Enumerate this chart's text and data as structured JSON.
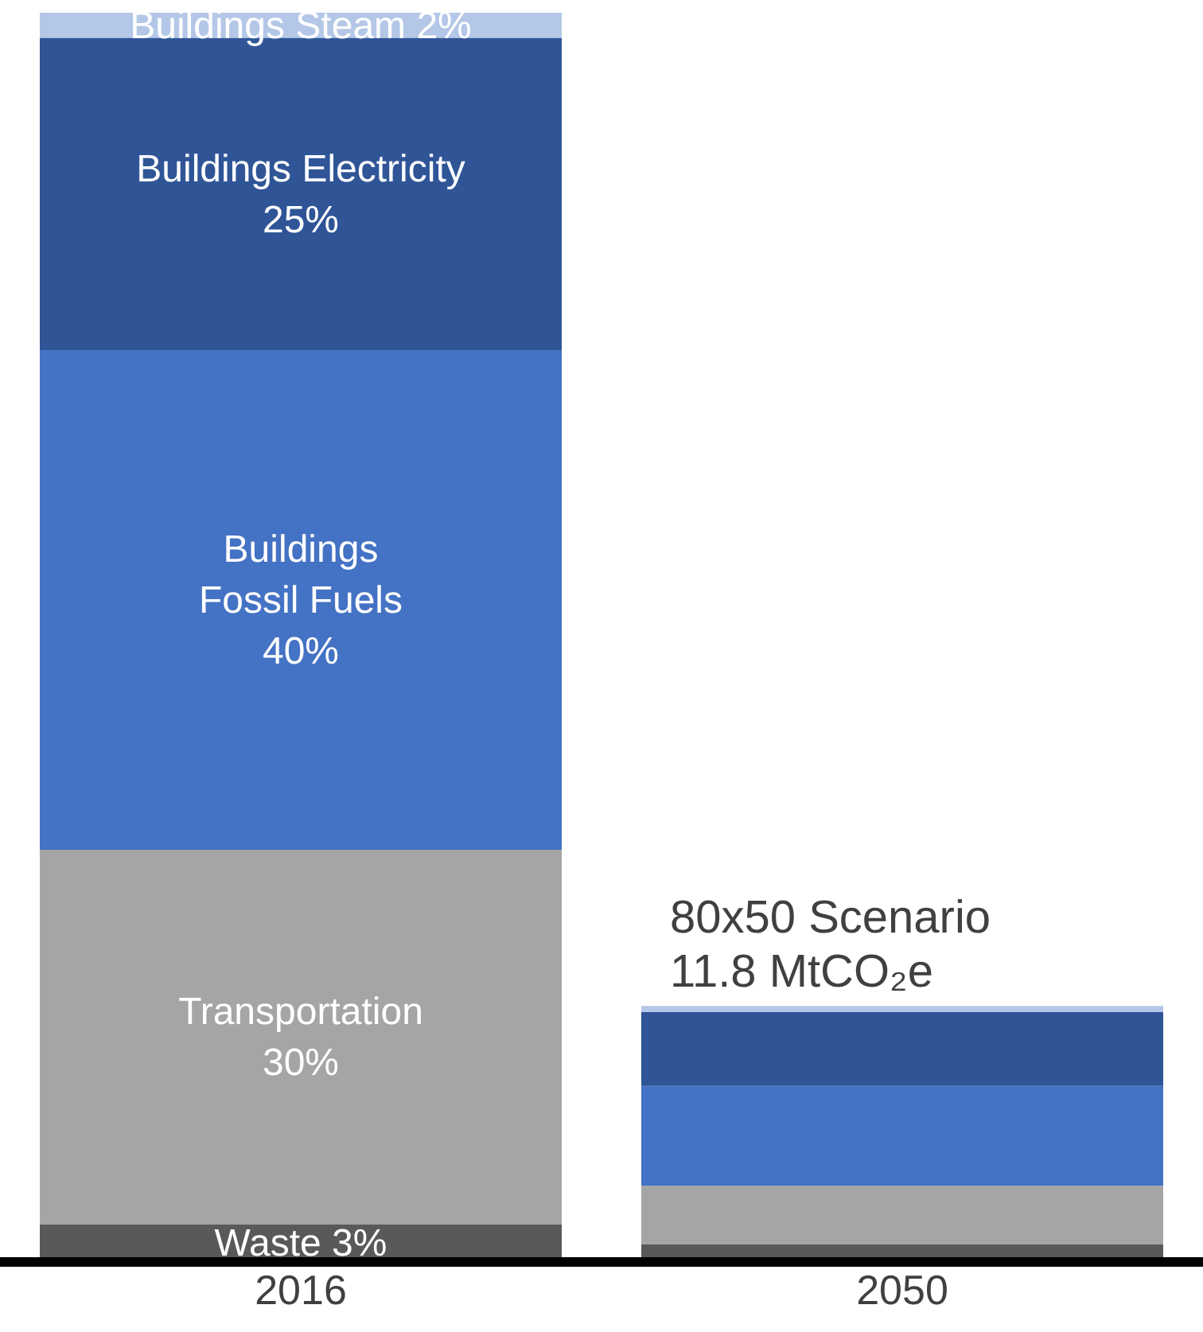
{
  "chart_data": {
    "type": "bar",
    "stacked": true,
    "categories": [
      "2016",
      "2050"
    ],
    "ylim": [
      0,
      100
    ],
    "tick_labels": "x",
    "series": [
      {
        "name": "Waste",
        "color": "#595959",
        "values": [
          3,
          1.4
        ],
        "value_labels": [
          "3%",
          null
        ]
      },
      {
        "name": "Transportation",
        "color": "#a5a5a5",
        "values": [
          30,
          4.7
        ],
        "value_labels": [
          "30%",
          null
        ]
      },
      {
        "name": "Buildings Fossil Fuels",
        "color": "#4472c4",
        "values": [
          40,
          8
        ],
        "value_labels": [
          "40%",
          null
        ]
      },
      {
        "name": "Buildings Electricity",
        "color": "#2f5597",
        "values": [
          25,
          5.9
        ],
        "value_labels": [
          "25%",
          null
        ]
      },
      {
        "name": "Buildings Steam",
        "color": "#b4c7e7",
        "values": [
          2,
          0.5
        ],
        "value_labels": [
          "2%",
          null
        ]
      }
    ],
    "annotations": [
      {
        "text": "80x50 Scenario\n11.8 MtCO₂e",
        "x": "2050",
        "y": 20.5
      }
    ],
    "legend": false,
    "grid": false
  }
}
